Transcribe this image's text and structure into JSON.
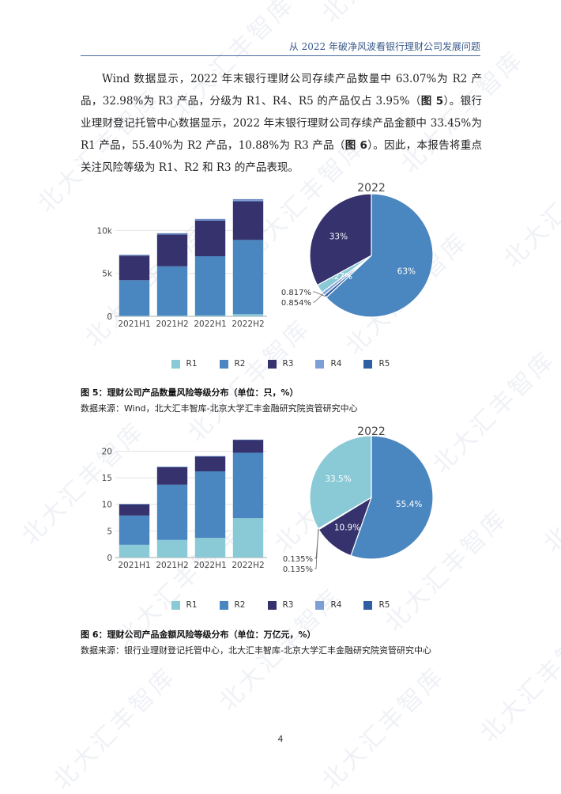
{
  "header": {
    "title": "从 2022 年破净风波看银行理财公司发展问题"
  },
  "paragraph": {
    "part1": "Wind 数据显示，2022 年末银行理财公司存续产品数量中 63.07%为 R2 产品，32.98%为 R3 产品，分级为 R1、R4、R5 的产品仅占 3.95%（",
    "ref1": "图 5",
    "part2": "）。银行业理财登记托管中心数据显示，2022 年末银行理财公司存续产品金额中 33.45%为 R1 产品，55.40%为 R2 产品，10.88%为 R3 产品（",
    "ref2": "图 6",
    "part3": "）。因此，本报告将重点关注风险等级为 R1、R2 和 R3 的产品表现。"
  },
  "colors": {
    "R1": "#8ac9d6",
    "R2": "#4a86c0",
    "R3": "#35326d",
    "R4": "#7e9ed6",
    "R5": "#2f5fa3"
  },
  "watermark_text": "北大汇丰智库",
  "legend": [
    "R1",
    "R2",
    "R3",
    "R4",
    "R5"
  ],
  "figure5": {
    "caption": "图 5：理财公司产品数量风险等级分布（单位：只，%）",
    "source": "数据来源：Wind，北大汇丰智库-北京大学汇丰金融研究院资管研究中心",
    "chart_data": [
      {
        "type": "bar",
        "stacked": true,
        "categories": [
          "2021H1",
          "2021H2",
          "2022H1",
          "2022H2"
        ],
        "series": [
          {
            "name": "R1",
            "values": [
              60,
              80,
              100,
              250
            ]
          },
          {
            "name": "R2",
            "values": [
              4150,
              5750,
              6900,
              8650
            ]
          },
          {
            "name": "R3",
            "values": [
              2850,
              3700,
              4150,
              4500
            ]
          },
          {
            "name": "R4",
            "values": [
              80,
              120,
              150,
              180
            ]
          },
          {
            "name": "R5",
            "values": [
              20,
              30,
              40,
              60
            ]
          }
        ],
        "yticks": [
          "0",
          "5k",
          "10k"
        ],
        "ylim": [
          0,
          14000
        ]
      },
      {
        "type": "pie",
        "title": "2022",
        "slices": [
          {
            "name": "R2",
            "value": 63.07,
            "label": "63%"
          },
          {
            "name": "R3",
            "value": 32.98,
            "label": "33%"
          },
          {
            "name": "R1",
            "value": 2.27,
            "label": "2.27%"
          },
          {
            "name": "R4",
            "value": 0.854,
            "label": "0.854%"
          },
          {
            "name": "R5",
            "value": 0.817,
            "label": "0.817%"
          }
        ]
      }
    ]
  },
  "figure6": {
    "caption": "图 6：理财公司产品金额风险等级分布（单位：万亿元，%）",
    "source": "数据来源：银行业理财登记托管中心，北大汇丰智库-北京大学汇丰金融研究院资管研究中心",
    "chart_data": [
      {
        "type": "bar",
        "stacked": true,
        "categories": [
          "2021H1",
          "2021H2",
          "2022H1",
          "2022H2"
        ],
        "series": [
          {
            "name": "R1",
            "values": [
              2.4,
              3.3,
              3.7,
              7.4
            ]
          },
          {
            "name": "R2",
            "values": [
              5.5,
              10.4,
              12.5,
              12.3
            ]
          },
          {
            "name": "R3",
            "values": [
              2.1,
              3.3,
              2.8,
              2.4
            ]
          },
          {
            "name": "R4",
            "values": [
              0.03,
              0.03,
              0.03,
              0.03
            ]
          },
          {
            "name": "R5",
            "values": [
              0.03,
              0.03,
              0.03,
              0.03
            ]
          }
        ],
        "yticks": [
          "0",
          "5",
          "10",
          "15",
          "20"
        ],
        "ylim": [
          0,
          22
        ]
      },
      {
        "type": "pie",
        "title": "2022",
        "slices": [
          {
            "name": "R2",
            "value": 55.4,
            "label": "55.4%"
          },
          {
            "name": "R3",
            "value": 10.88,
            "label": "10.9%"
          },
          {
            "name": "R4",
            "value": 0.135,
            "label": "0.135%"
          },
          {
            "name": "R5",
            "value": 0.135,
            "label": "0.135%"
          },
          {
            "name": "R1",
            "value": 33.45,
            "label": "33.5%"
          }
        ]
      }
    ]
  },
  "page_number": "4"
}
